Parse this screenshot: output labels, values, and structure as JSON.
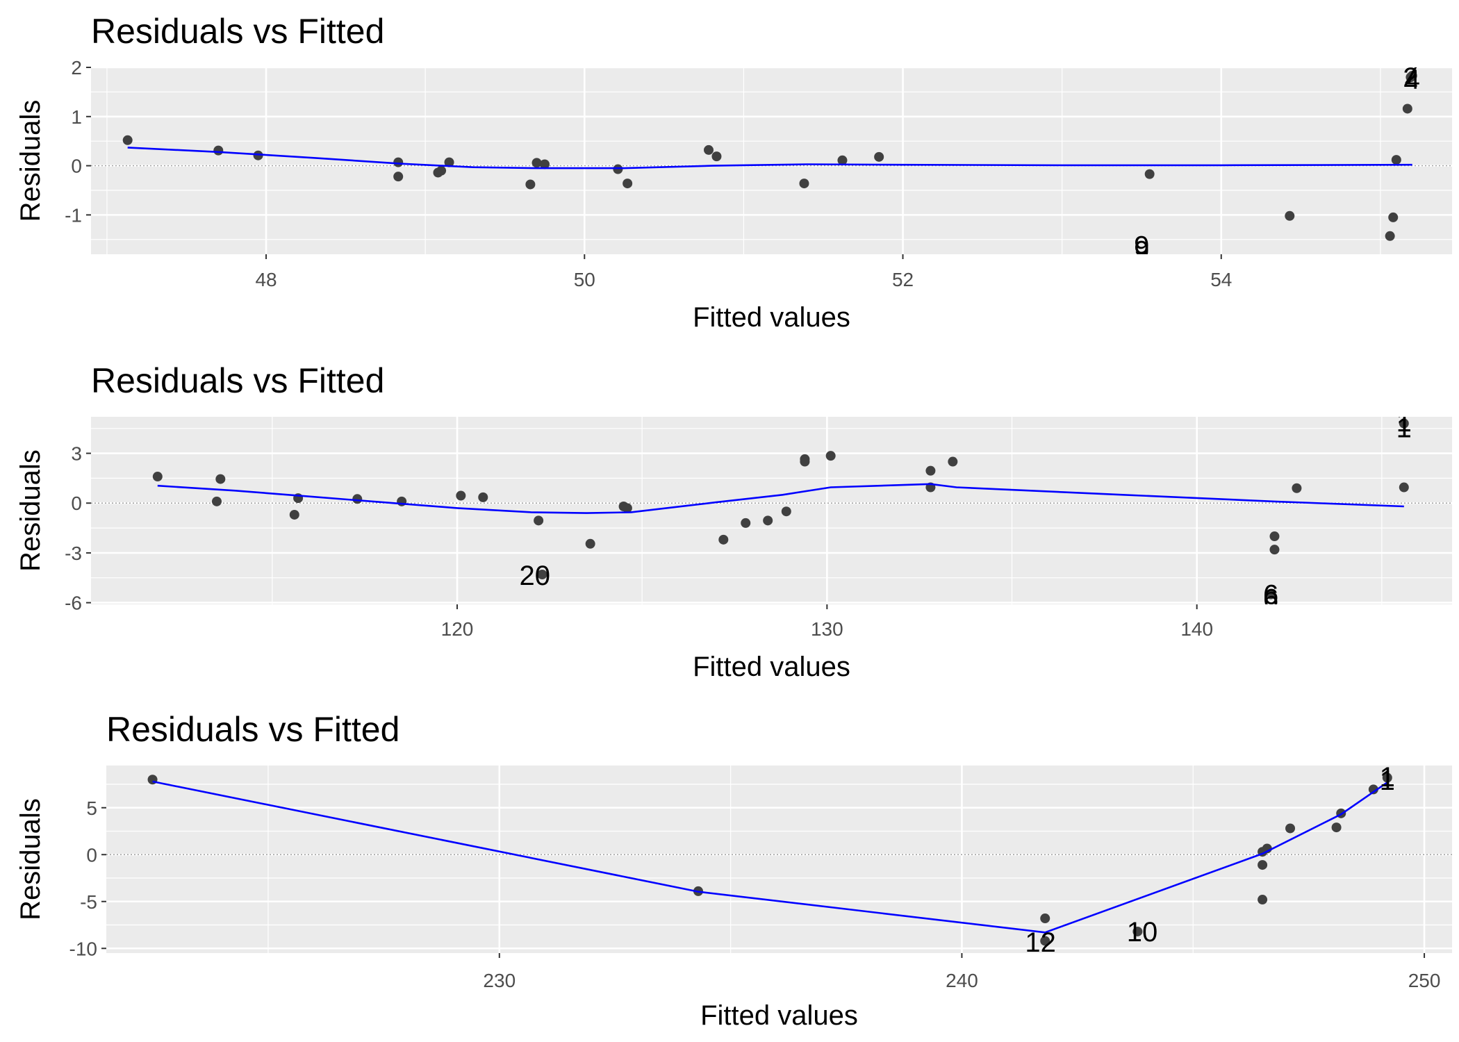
{
  "colors": {
    "panel_background": "#ebebeb",
    "grid": "#ffffff",
    "points": "#404040",
    "smooth_line": "#0000ff",
    "zero_line": "#9e9e9e"
  },
  "chart_data": [
    {
      "type": "scatter",
      "title": "Residuals vs Fitted",
      "xlabel": "Fitted values",
      "ylabel": "Residuals",
      "xlim": [
        46.9,
        55.45
      ],
      "ylim": [
        -1.8,
        2.0
      ],
      "xticks": [
        48,
        50,
        52,
        54
      ],
      "xtick_labels": [
        "48",
        "50",
        "52",
        "54"
      ],
      "yticks": [
        -1,
        0,
        1,
        2
      ],
      "ytick_labels": [
        "-1",
        "0",
        "1",
        "2"
      ],
      "grid": true,
      "zero_line": true,
      "points": [
        {
          "x": 47.13,
          "y": 0.52
        },
        {
          "x": 47.7,
          "y": 0.31
        },
        {
          "x": 47.95,
          "y": 0.21
        },
        {
          "x": 48.83,
          "y": 0.07
        },
        {
          "x": 48.83,
          "y": -0.22
        },
        {
          "x": 49.08,
          "y": -0.14
        },
        {
          "x": 49.1,
          "y": -0.1
        },
        {
          "x": 49.15,
          "y": 0.07
        },
        {
          "x": 49.66,
          "y": -0.38
        },
        {
          "x": 49.7,
          "y": 0.06
        },
        {
          "x": 49.75,
          "y": 0.03
        },
        {
          "x": 50.21,
          "y": -0.07
        },
        {
          "x": 50.27,
          "y": -0.36
        },
        {
          "x": 50.78,
          "y": 0.32
        },
        {
          "x": 50.83,
          "y": 0.19
        },
        {
          "x": 51.38,
          "y": -0.36
        },
        {
          "x": 51.62,
          "y": 0.11
        },
        {
          "x": 51.85,
          "y": 0.18
        },
        {
          "x": 53.55,
          "y": -0.17
        },
        {
          "x": 54.43,
          "y": -1.02
        },
        {
          "x": 55.06,
          "y": -1.43
        },
        {
          "x": 55.08,
          "y": -1.05
        },
        {
          "x": 55.1,
          "y": 0.12
        },
        {
          "x": 55.17,
          "y": 1.16
        },
        {
          "x": 55.19,
          "y": 1.8
        },
        {
          "x": 55.2,
          "y": 1.83
        }
      ],
      "smooth": [
        {
          "x": 47.13,
          "y": 0.37
        },
        {
          "x": 47.7,
          "y": 0.28
        },
        {
          "x": 48.3,
          "y": 0.16
        },
        {
          "x": 48.85,
          "y": 0.04
        },
        {
          "x": 49.3,
          "y": -0.03
        },
        {
          "x": 49.7,
          "y": -0.05
        },
        {
          "x": 50.25,
          "y": -0.05
        },
        {
          "x": 50.8,
          "y": 0.0
        },
        {
          "x": 51.4,
          "y": 0.03
        },
        {
          "x": 52.0,
          "y": 0.02
        },
        {
          "x": 53.0,
          "y": 0.01
        },
        {
          "x": 54.0,
          "y": 0.01
        },
        {
          "x": 55.2,
          "y": 0.02
        }
      ],
      "labels": [
        {
          "text": "7",
          "x": 55.19,
          "y": 1.85
        },
        {
          "text": "2",
          "x": 55.19,
          "y": 1.8
        },
        {
          "text": "4",
          "x": 55.2,
          "y": 1.77
        },
        {
          "text": "9",
          "x": 53.5,
          "y": -1.62
        },
        {
          "text": "9",
          "x": 53.5,
          "y": -1.72
        }
      ]
    },
    {
      "type": "scatter",
      "title": "Residuals vs Fitted",
      "xlabel": "Fitted values",
      "ylabel": "Residuals",
      "xlim": [
        110.1,
        146.9
      ],
      "ylim": [
        -6.1,
        5.2
      ],
      "xticks": [
        120,
        130,
        140
      ],
      "xtick_labels": [
        "120",
        "130",
        "140"
      ],
      "yticks": [
        -6,
        -3,
        0,
        3
      ],
      "ytick_labels": [
        "-6",
        "-3",
        "0",
        "3"
      ],
      "grid": true,
      "zero_line": true,
      "points": [
        {
          "x": 111.9,
          "y": 1.6
        },
        {
          "x": 113.5,
          "y": 0.1
        },
        {
          "x": 113.6,
          "y": 1.45
        },
        {
          "x": 115.6,
          "y": -0.7
        },
        {
          "x": 115.7,
          "y": 0.3
        },
        {
          "x": 117.3,
          "y": 0.25
        },
        {
          "x": 118.5,
          "y": 0.1
        },
        {
          "x": 120.1,
          "y": 0.45
        },
        {
          "x": 120.7,
          "y": 0.35
        },
        {
          "x": 122.2,
          "y": -1.05
        },
        {
          "x": 122.3,
          "y": -4.3
        },
        {
          "x": 123.6,
          "y": -2.45
        },
        {
          "x": 124.5,
          "y": -0.2
        },
        {
          "x": 124.6,
          "y": -0.3
        },
        {
          "x": 127.2,
          "y": -2.2
        },
        {
          "x": 127.8,
          "y": -1.2
        },
        {
          "x": 128.4,
          "y": -1.05
        },
        {
          "x": 128.9,
          "y": -0.5
        },
        {
          "x": 129.4,
          "y": 2.5
        },
        {
          "x": 129.4,
          "y": 2.65
        },
        {
          "x": 130.1,
          "y": 2.85
        },
        {
          "x": 132.8,
          "y": 1.95
        },
        {
          "x": 132.8,
          "y": 0.95
        },
        {
          "x": 133.4,
          "y": 2.5
        },
        {
          "x": 142.1,
          "y": -2.0
        },
        {
          "x": 142.1,
          "y": -2.8
        },
        {
          "x": 142.0,
          "y": -5.5
        },
        {
          "x": 142.7,
          "y": 0.9
        },
        {
          "x": 145.6,
          "y": 4.8
        },
        {
          "x": 145.6,
          "y": 0.95
        }
      ],
      "smooth": [
        {
          "x": 111.9,
          "y": 1.05
        },
        {
          "x": 114.0,
          "y": 0.75
        },
        {
          "x": 116.0,
          "y": 0.4
        },
        {
          "x": 118.0,
          "y": 0.05
        },
        {
          "x": 120.0,
          "y": -0.3
        },
        {
          "x": 122.0,
          "y": -0.55
        },
        {
          "x": 123.5,
          "y": -0.6
        },
        {
          "x": 124.7,
          "y": -0.55
        },
        {
          "x": 127.0,
          "y": 0.05
        },
        {
          "x": 128.8,
          "y": 0.5
        },
        {
          "x": 130.1,
          "y": 0.95
        },
        {
          "x": 132.8,
          "y": 1.15
        },
        {
          "x": 133.5,
          "y": 0.95
        },
        {
          "x": 138.0,
          "y": 0.5
        },
        {
          "x": 142.1,
          "y": 0.1
        },
        {
          "x": 145.6,
          "y": -0.2
        }
      ],
      "labels": [
        {
          "text": "20",
          "x": 122.1,
          "y": -4.35
        },
        {
          "text": "6",
          "x": 142.0,
          "y": -5.5
        },
        {
          "text": "6",
          "x": 142.0,
          "y": -5.75
        },
        {
          "text": "1",
          "x": 145.6,
          "y": 4.9
        },
        {
          "text": "1",
          "x": 145.6,
          "y": 4.55
        }
      ]
    },
    {
      "type": "scatter",
      "title": "Residuals vs Fitted",
      "xlabel": "Fitted values",
      "ylabel": "Residuals",
      "xlim": [
        221.5,
        250.6
      ],
      "ylim": [
        -10.5,
        9.5
      ],
      "xticks": [
        230,
        240,
        250
      ],
      "xtick_labels": [
        "230",
        "240",
        "250"
      ],
      "yticks": [
        -10,
        -5,
        0,
        5
      ],
      "ytick_labels": [
        "-10",
        "-5",
        "0",
        "5"
      ],
      "grid": true,
      "zero_line": true,
      "points": [
        {
          "x": 222.5,
          "y": 8.0
        },
        {
          "x": 234.3,
          "y": -3.9
        },
        {
          "x": 241.8,
          "y": -6.8
        },
        {
          "x": 241.8,
          "y": -9.2
        },
        {
          "x": 243.8,
          "y": -8.2
        },
        {
          "x": 246.5,
          "y": 0.3
        },
        {
          "x": 246.6,
          "y": 0.65
        },
        {
          "x": 246.5,
          "y": -1.1
        },
        {
          "x": 246.5,
          "y": -4.8
        },
        {
          "x": 247.1,
          "y": 2.8
        },
        {
          "x": 248.1,
          "y": 2.9
        },
        {
          "x": 248.2,
          "y": 4.4
        },
        {
          "x": 248.9,
          "y": 6.95
        },
        {
          "x": 249.2,
          "y": 8.2
        }
      ],
      "smooth": [
        {
          "x": 222.5,
          "y": 7.8
        },
        {
          "x": 234.3,
          "y": -3.95
        },
        {
          "x": 241.8,
          "y": -8.3
        },
        {
          "x": 246.5,
          "y": 0.1
        },
        {
          "x": 248.2,
          "y": 4.3
        },
        {
          "x": 249.2,
          "y": 7.7
        }
      ],
      "labels": [
        {
          "text": "12",
          "x": 241.7,
          "y": -9.3
        },
        {
          "text": "10",
          "x": 243.9,
          "y": -8.2
        },
        {
          "text": "1",
          "x": 249.2,
          "y": 8.3
        },
        {
          "text": "1",
          "x": 249.2,
          "y": 7.95
        }
      ]
    }
  ]
}
